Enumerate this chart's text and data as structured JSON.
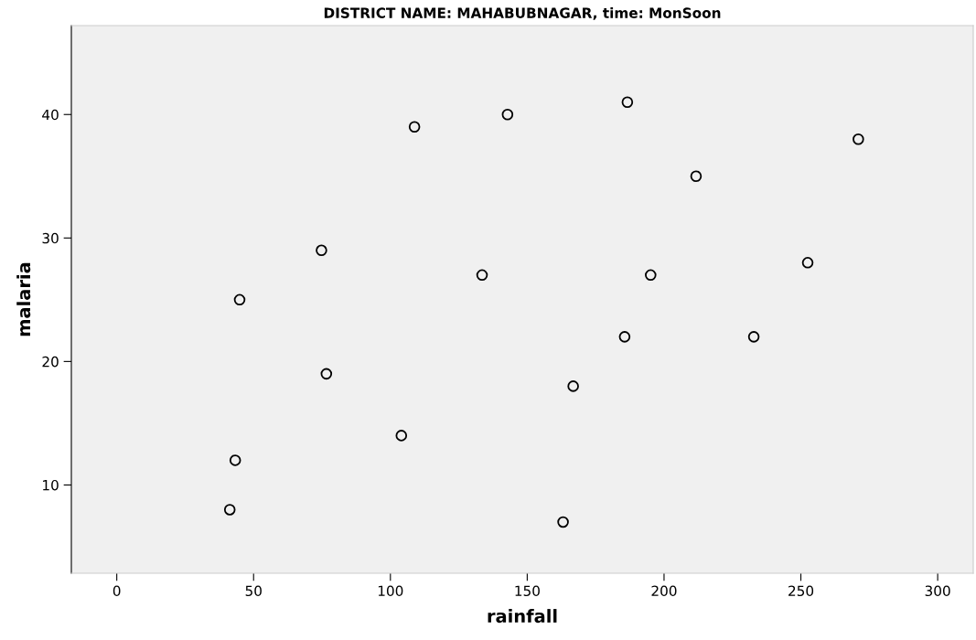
{
  "chart_data": {
    "type": "scatter",
    "title": "DISTRICT NAME: MAHABUBNAGAR, time: MonSoon",
    "xlabel": "rainfall",
    "ylabel": "malaria",
    "x": [
      41.3,
      43.3,
      44.9,
      74.8,
      76.6,
      104,
      108.8,
      133.5,
      142.8,
      163.1,
      166.8,
      186.6,
      185.6,
      195.1,
      211.7,
      232.8,
      252.5,
      271
    ],
    "values": [
      8,
      12,
      25,
      29,
      19,
      14,
      39,
      27,
      40,
      7,
      18,
      41,
      22,
      27,
      35,
      22,
      28,
      38
    ],
    "color": "#000000",
    "marker": "circle",
    "xlim": [
      -16.6,
      313
    ],
    "ylim": [
      2.85,
      47.2
    ],
    "xticks": [
      0,
      50,
      100,
      150,
      200,
      250,
      300
    ],
    "yticks": [
      10,
      20,
      30,
      40
    ],
    "grid": false
  }
}
